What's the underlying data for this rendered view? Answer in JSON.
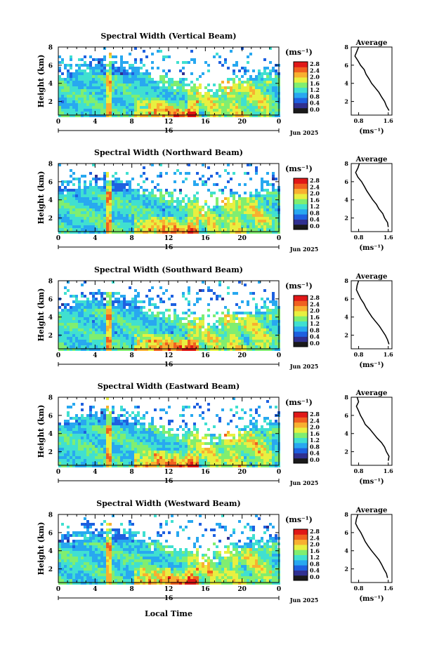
{
  "colorbar": {
    "unit": "(ms⁻¹)",
    "ticks": [
      "2.8",
      "2.4",
      "2.0",
      "1.6",
      "1.2",
      "0.8",
      "0.4",
      "0.0"
    ],
    "colors": [
      "#1a1a1a",
      "#303090",
      "#1e60e0",
      "#28a8f0",
      "#40e0d0",
      "#80ee70",
      "#e8f040",
      "#f8b030",
      "#f06020",
      "#e01818"
    ]
  },
  "shared": {
    "ylabel": "Height (km)",
    "yticks": [
      "2",
      "4",
      "6",
      "8"
    ],
    "xticks": [
      "0",
      "4",
      "8",
      "12",
      "16",
      "20",
      "0"
    ],
    "date_label": "16",
    "date_right": "Jun 2025",
    "xlabel_bottom": "Local Time",
    "avg_title": "Average",
    "avg_yticks": [
      "2",
      "4",
      "6",
      "8"
    ],
    "avg_xticks": [
      "0.8",
      "1.6"
    ],
    "avg_xlabel": "(ms⁻¹)"
  },
  "chart_data": [
    {
      "type": "heatmap",
      "title": "Spectral Width (Vertical Beam)",
      "ylabel": "Height (km)",
      "x_range_hours": [
        0,
        24
      ],
      "y_range_km": [
        0.5,
        8
      ],
      "colorbar_range": [
        0.0,
        2.8
      ],
      "average_profile": {
        "xlabel": "(ms⁻¹)",
        "xlim": [
          0.6,
          1.7
        ],
        "height_km": [
          1.0,
          1.5,
          2.0,
          2.5,
          3.0,
          3.5,
          4.0,
          4.5,
          5.0,
          5.5,
          6.0,
          6.5,
          7.0,
          7.5,
          8.0
        ],
        "width_ms": [
          1.62,
          1.55,
          1.5,
          1.42,
          1.35,
          1.25,
          1.15,
          1.08,
          1.0,
          0.95,
          0.85,
          0.78,
          0.7,
          0.75,
          0.8
        ]
      }
    },
    {
      "type": "heatmap",
      "title": "Spectral Width (Northward Beam)",
      "ylabel": "Height (km)",
      "x_range_hours": [
        0,
        24
      ],
      "y_range_km": [
        0.5,
        8
      ],
      "colorbar_range": [
        0.0,
        2.8
      ],
      "average_profile": {
        "xlabel": "(ms⁻¹)",
        "xlim": [
          0.6,
          1.7
        ],
        "height_km": [
          1.0,
          1.5,
          2.0,
          2.5,
          3.0,
          3.5,
          4.0,
          4.5,
          5.0,
          5.5,
          6.0,
          6.5,
          7.0,
          7.5,
          8.0
        ],
        "width_ms": [
          1.6,
          1.58,
          1.5,
          1.45,
          1.35,
          1.28,
          1.18,
          1.1,
          1.02,
          0.95,
          0.88,
          0.78,
          0.72,
          0.78,
          0.82
        ]
      }
    },
    {
      "type": "heatmap",
      "title": "Spectral Width (Southward Beam)",
      "ylabel": "Height (km)",
      "x_range_hours": [
        0,
        24
      ],
      "y_range_km": [
        0.5,
        8
      ],
      "colorbar_range": [
        0.0,
        2.8
      ],
      "average_profile": {
        "xlabel": "(ms⁻¹)",
        "xlim": [
          0.6,
          1.7
        ],
        "height_km": [
          1.0,
          1.5,
          2.0,
          2.5,
          3.0,
          3.5,
          4.0,
          4.5,
          5.0,
          5.5,
          6.0,
          6.5,
          7.0,
          7.5,
          8.0
        ],
        "width_ms": [
          1.62,
          1.58,
          1.52,
          1.44,
          1.36,
          1.26,
          1.16,
          1.08,
          1.0,
          0.94,
          0.86,
          0.8,
          0.74,
          0.76,
          0.8
        ]
      }
    },
    {
      "type": "heatmap",
      "title": "Spectral Width (Eastward Beam)",
      "ylabel": "Height (km)",
      "x_range_hours": [
        0,
        24
      ],
      "y_range_km": [
        0.5,
        8
      ],
      "colorbar_range": [
        0.0,
        2.8
      ],
      "average_profile": {
        "xlabel": "(ms⁻¹)",
        "xlim": [
          0.6,
          1.7
        ],
        "height_km": [
          1.0,
          1.5,
          2.0,
          2.5,
          3.0,
          3.5,
          4.0,
          4.5,
          5.0,
          5.5,
          6.0,
          6.5,
          7.0,
          7.5,
          8.0
        ],
        "width_ms": [
          1.6,
          1.62,
          1.55,
          1.5,
          1.42,
          1.3,
          1.2,
          1.1,
          0.98,
          0.92,
          0.85,
          0.8,
          0.74,
          0.8,
          0.76
        ]
      }
    },
    {
      "type": "heatmap",
      "title": "Spectral Width (Westward Beam)",
      "ylabel": "Height (km)",
      "x_range_hours": [
        0,
        24
      ],
      "y_range_km": [
        0.5,
        8
      ],
      "colorbar_range": [
        0.0,
        2.8
      ],
      "average_profile": {
        "xlabel": "(ms⁻¹)",
        "xlim": [
          0.6,
          1.7
        ],
        "height_km": [
          1.0,
          1.5,
          2.0,
          2.5,
          3.0,
          3.5,
          4.0,
          4.5,
          5.0,
          5.5,
          6.0,
          6.5,
          7.0,
          7.5,
          8.0
        ],
        "width_ms": [
          1.58,
          1.55,
          1.48,
          1.42,
          1.35,
          1.25,
          1.15,
          1.06,
          0.98,
          0.92,
          0.86,
          0.78,
          0.72,
          0.74,
          0.78
        ]
      }
    }
  ]
}
